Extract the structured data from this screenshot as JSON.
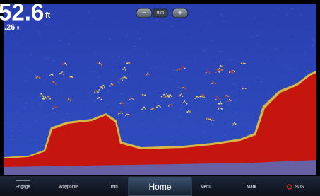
{
  "depth": {
    "value": "52.6",
    "unit": "ft"
  },
  "sub_reading": {
    "value": ".26",
    "unit": "ft"
  },
  "zoom": {
    "minus": "−",
    "range": "92ft",
    "plus": "+"
  },
  "menu": [
    "Engage",
    "Waypoints",
    "Info",
    "Home",
    "Menu",
    "Mark",
    "SOS"
  ]
}
